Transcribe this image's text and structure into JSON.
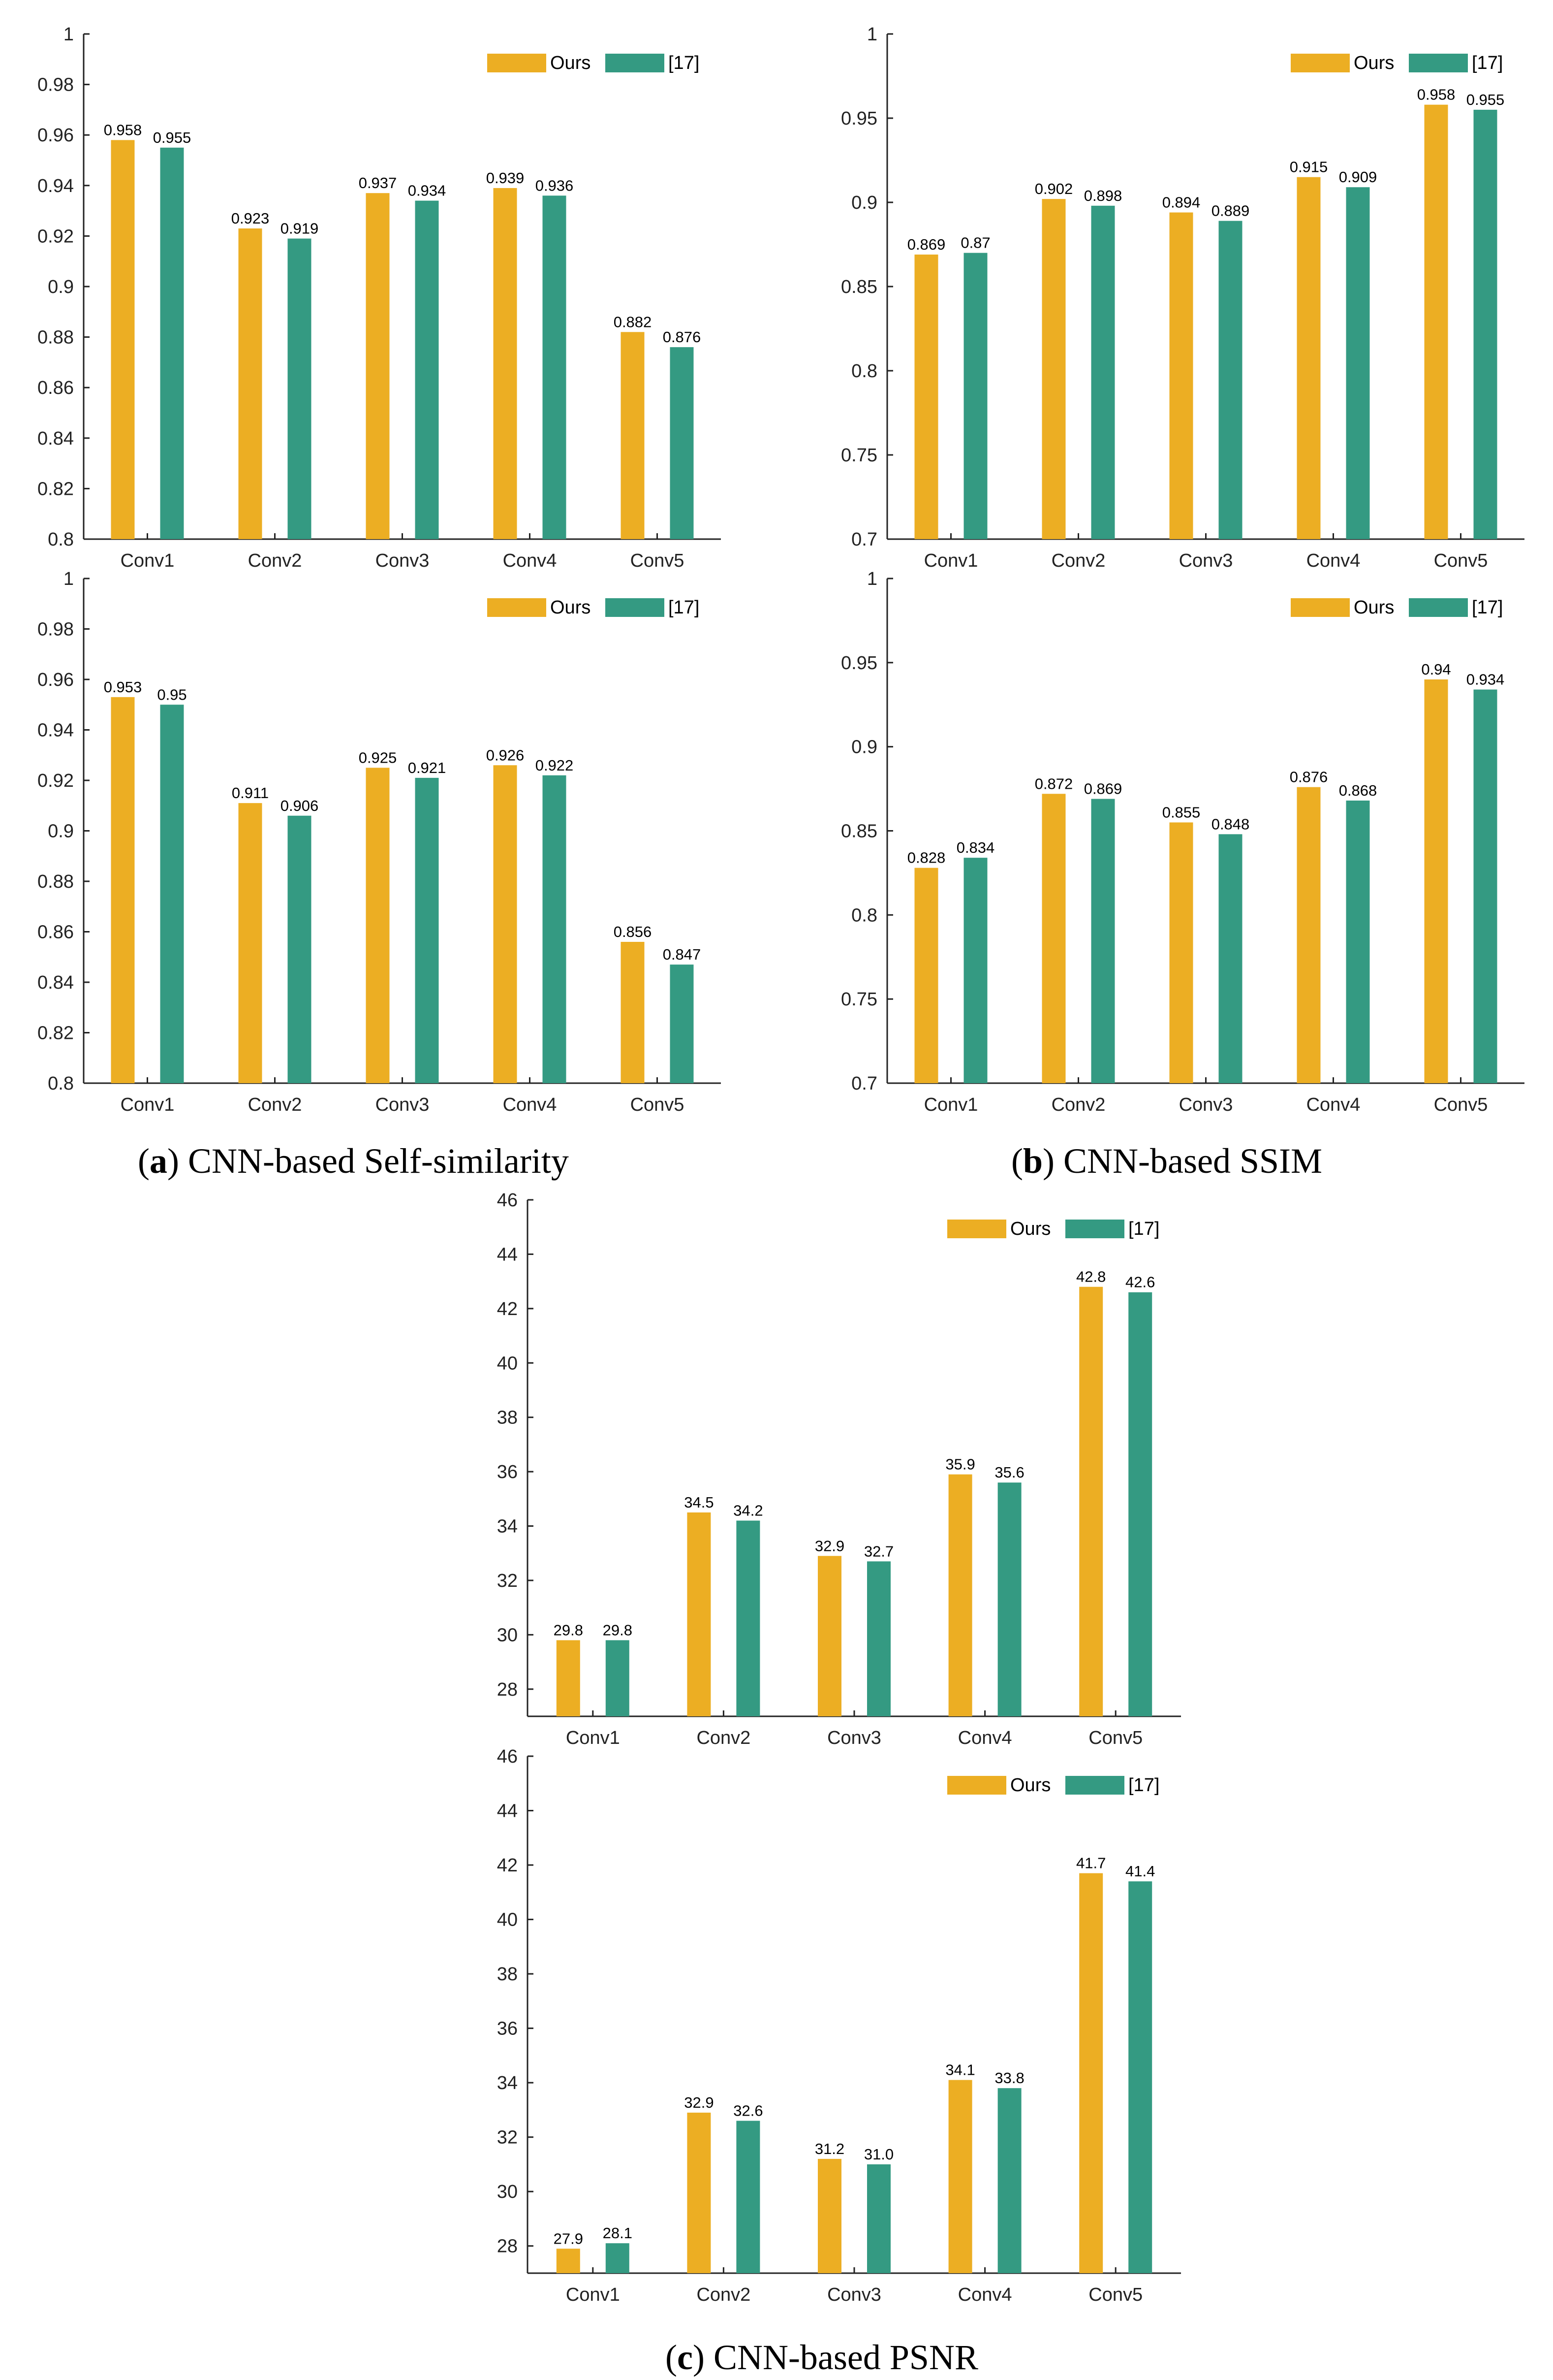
{
  "colors": {
    "ours": "#ECAE23",
    "ref17": "#349A82"
  },
  "captions": {
    "a": {
      "letter": "a",
      "text": "CNN-based Self-similarity"
    },
    "b": {
      "letter": "b",
      "text": "CNN-based SSIM"
    },
    "c": {
      "letter": "c",
      "text": "CNN-based PSNR"
    }
  },
  "chart_data": [
    {
      "id": "a-top",
      "type": "bar",
      "title": "",
      "xlabel": "",
      "ylabel": "",
      "categories": [
        "Conv1",
        "Conv2",
        "Conv3",
        "Conv4",
        "Conv5"
      ],
      "ylim": [
        0.8,
        1
      ],
      "yticks": [
        "0.8",
        "0.82",
        "0.84",
        "0.86",
        "0.88",
        "0.9",
        "0.92",
        "0.94",
        "0.96",
        "0.98",
        "1"
      ],
      "grid": false,
      "legend": "top-right",
      "series": [
        {
          "name": "Ours",
          "values": [
            0.958,
            0.923,
            0.937,
            0.939,
            0.882
          ],
          "labels": [
            "0.958",
            "0.923",
            "0.937",
            "0.939",
            "0.882"
          ]
        },
        {
          "name": "[17]",
          "values": [
            0.955,
            0.919,
            0.934,
            0.936,
            0.876
          ],
          "labels": [
            "0.955",
            "0.919",
            "0.934",
            "0.936",
            "0.876"
          ]
        }
      ]
    },
    {
      "id": "b-top",
      "type": "bar",
      "title": "",
      "xlabel": "",
      "ylabel": "",
      "categories": [
        "Conv1",
        "Conv2",
        "Conv3",
        "Conv4",
        "Conv5"
      ],
      "ylim": [
        0.7,
        1
      ],
      "yticks": [
        "0.7",
        "0.75",
        "0.8",
        "0.85",
        "0.9",
        "0.95",
        "1"
      ],
      "grid": false,
      "legend": "top-right",
      "series": [
        {
          "name": "Ours",
          "values": [
            0.869,
            0.902,
            0.894,
            0.915,
            0.958
          ],
          "labels": [
            "0.869",
            "0.902",
            "0.894",
            "0.915",
            "0.958"
          ]
        },
        {
          "name": "[17]",
          "values": [
            0.87,
            0.898,
            0.889,
            0.909,
            0.955
          ],
          "labels": [
            "0.87",
            "0.898",
            "0.889",
            "0.909",
            "0.955"
          ]
        }
      ]
    },
    {
      "id": "a-bottom",
      "type": "bar",
      "title": "",
      "xlabel": "",
      "ylabel": "",
      "categories": [
        "Conv1",
        "Conv2",
        "Conv3",
        "Conv4",
        "Conv5"
      ],
      "ylim": [
        0.8,
        1
      ],
      "yticks": [
        "0.8",
        "0.82",
        "0.84",
        "0.86",
        "0.88",
        "0.9",
        "0.92",
        "0.94",
        "0.96",
        "0.98",
        "1"
      ],
      "grid": false,
      "legend": "top-right",
      "series": [
        {
          "name": "Ours",
          "values": [
            0.953,
            0.911,
            0.925,
            0.926,
            0.856
          ],
          "labels": [
            "0.953",
            "0.911",
            "0.925",
            "0.926",
            "0.856"
          ]
        },
        {
          "name": "[17]",
          "values": [
            0.95,
            0.906,
            0.921,
            0.922,
            0.847
          ],
          "labels": [
            "0.95",
            "0.906",
            "0.921",
            "0.922",
            "0.847"
          ]
        }
      ]
    },
    {
      "id": "b-bottom",
      "type": "bar",
      "title": "",
      "xlabel": "",
      "ylabel": "",
      "categories": [
        "Conv1",
        "Conv2",
        "Conv3",
        "Conv4",
        "Conv5"
      ],
      "ylim": [
        0.7,
        1
      ],
      "yticks": [
        "0.7",
        "0.75",
        "0.8",
        "0.85",
        "0.9",
        "0.95",
        "1"
      ],
      "grid": false,
      "legend": "top-right",
      "series": [
        {
          "name": "Ours",
          "values": [
            0.828,
            0.872,
            0.855,
            0.876,
            0.94
          ],
          "labels": [
            "0.828",
            "0.872",
            "0.855",
            "0.876",
            "0.94"
          ]
        },
        {
          "name": "[17]",
          "values": [
            0.834,
            0.869,
            0.848,
            0.868,
            0.934
          ],
          "labels": [
            "0.834",
            "0.869",
            "0.848",
            "0.868",
            "0.934"
          ]
        }
      ]
    },
    {
      "id": "c-top",
      "type": "bar",
      "title": "",
      "xlabel": "",
      "ylabel": "",
      "categories": [
        "Conv1",
        "Conv2",
        "Conv3",
        "Conv4",
        "Conv5"
      ],
      "ylim": [
        27,
        46
      ],
      "yticks": [
        "28",
        "30",
        "32",
        "34",
        "36",
        "38",
        "40",
        "42",
        "44",
        "46"
      ],
      "grid": false,
      "legend": "top-right",
      "series": [
        {
          "name": "Ours",
          "values": [
            29.8,
            34.5,
            32.9,
            35.9,
            42.8
          ],
          "labels": [
            "29.8",
            "34.5",
            "32.9",
            "35.9",
            "42.8"
          ]
        },
        {
          "name": "[17]",
          "values": [
            29.8,
            34.2,
            32.7,
            35.6,
            42.6
          ],
          "labels": [
            "29.8",
            "34.2",
            "32.7",
            "35.6",
            "42.6"
          ]
        }
      ]
    },
    {
      "id": "c-bottom",
      "type": "bar",
      "title": "",
      "xlabel": "",
      "ylabel": "",
      "categories": [
        "Conv1",
        "Conv2",
        "Conv3",
        "Conv4",
        "Conv5"
      ],
      "ylim": [
        27,
        46
      ],
      "yticks": [
        "28",
        "30",
        "32",
        "34",
        "36",
        "38",
        "40",
        "42",
        "44",
        "46"
      ],
      "grid": false,
      "legend": "top-right",
      "series": [
        {
          "name": "Ours",
          "values": [
            27.9,
            32.9,
            31.2,
            34.1,
            41.7
          ],
          "labels": [
            "27.9",
            "32.9",
            "31.2",
            "34.1",
            "41.7"
          ]
        },
        {
          "name": "[17]",
          "values": [
            28.1,
            32.6,
            31.0,
            33.8,
            41.4
          ],
          "labels": [
            "28.1",
            "32.6",
            "31.0",
            "33.8",
            "41.4"
          ]
        }
      ]
    }
  ]
}
